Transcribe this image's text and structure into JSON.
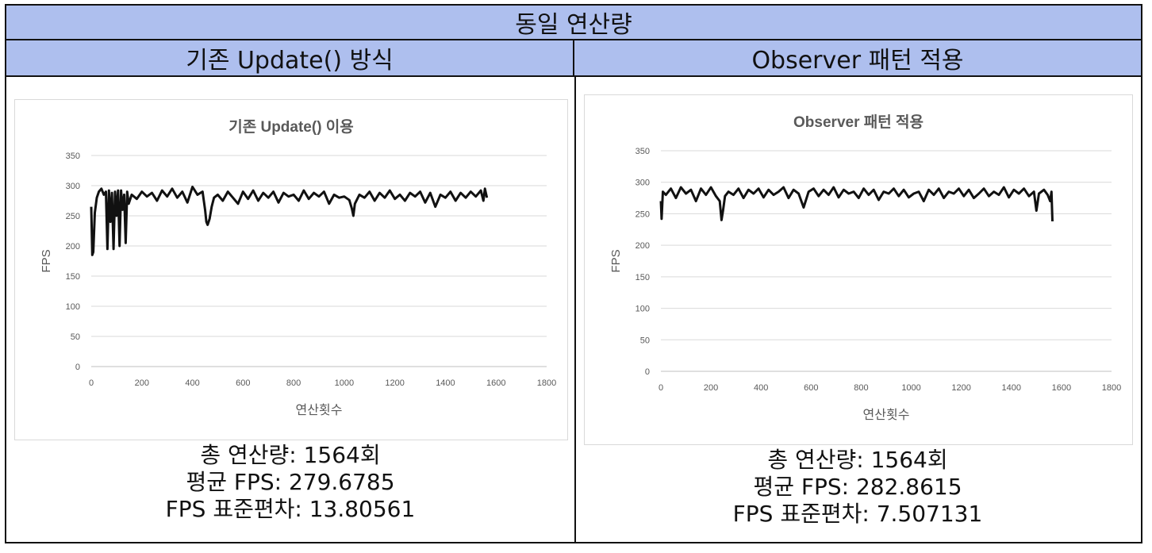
{
  "header": {
    "title": "동일 연산량",
    "columns": [
      "기존 Update() 방식",
      "Observer 패턴 적용"
    ]
  },
  "panels": [
    {
      "stats": [
        "총 연산량: 1564회",
        "평균 FPS: 279.6785",
        "FPS 표준편차: 13.80561"
      ]
    },
    {
      "stats": [
        "총 연산량: 1564회",
        "평균 FPS: 282.8615",
        "FPS 표준편차: 7.507131"
      ]
    }
  ],
  "chart_data": [
    {
      "type": "line",
      "title": "기존 Update() 이용",
      "xlabel": "연산횟수",
      "ylabel": "FPS",
      "xlim": [
        0,
        1800
      ],
      "ylim": [
        0,
        350
      ],
      "xticks": [
        "0",
        "200",
        "400",
        "600",
        "800",
        "1000",
        "1200",
        "1400",
        "1600",
        "1800"
      ],
      "yticks": [
        "0",
        "50",
        "100",
        "150",
        "200",
        "250",
        "300",
        "350"
      ],
      "grid": true,
      "color": "#111111",
      "series": [
        {
          "x": [
            0,
            4,
            8,
            14,
            22,
            30,
            40,
            50,
            58,
            64,
            70,
            76,
            82,
            88,
            94,
            100,
            106,
            112,
            118,
            124,
            130,
            136,
            142,
            148,
            160,
            180,
            200,
            220,
            240,
            260,
            280,
            300,
            320,
            340,
            360,
            380,
            400,
            420,
            440,
            450,
            455,
            460,
            468,
            476,
            485,
            500,
            520,
            540,
            560,
            580,
            600,
            620,
            640,
            660,
            680,
            700,
            720,
            740,
            760,
            780,
            800,
            820,
            840,
            860,
            880,
            900,
            920,
            940,
            960,
            980,
            1000,
            1020,
            1030,
            1036,
            1042,
            1060,
            1080,
            1100,
            1120,
            1140,
            1160,
            1180,
            1200,
            1220,
            1240,
            1260,
            1280,
            1300,
            1320,
            1340,
            1360,
            1380,
            1400,
            1420,
            1440,
            1460,
            1480,
            1500,
            1520,
            1540,
            1550,
            1556,
            1564
          ],
          "y": [
            265,
            185,
            190,
            255,
            280,
            290,
            295,
            285,
            290,
            195,
            292,
            240,
            288,
            195,
            290,
            250,
            292,
            200,
            292,
            260,
            285,
            205,
            290,
            270,
            285,
            278,
            290,
            282,
            288,
            275,
            292,
            282,
            295,
            280,
            290,
            272,
            298,
            285,
            290,
            260,
            240,
            235,
            245,
            265,
            280,
            285,
            275,
            290,
            280,
            270,
            290,
            278,
            292,
            275,
            288,
            280,
            290,
            272,
            288,
            282,
            285,
            275,
            292,
            278,
            288,
            282,
            290,
            270,
            285,
            280,
            282,
            276,
            262,
            250,
            270,
            285,
            280,
            290,
            275,
            288,
            280,
            292,
            278,
            285,
            275,
            288,
            282,
            290,
            272,
            288,
            265,
            285,
            280,
            290,
            275,
            288,
            280,
            290,
            282,
            292,
            275,
            295,
            280
          ]
        }
      ]
    },
    {
      "type": "line",
      "title": "Observer 패턴 적용",
      "xlabel": "연산횟수",
      "ylabel": "FPS",
      "xlim": [
        0,
        1800
      ],
      "ylim": [
        0,
        350
      ],
      "xticks": [
        "0",
        "200",
        "400",
        "600",
        "800",
        "1000",
        "1200",
        "1400",
        "1600",
        "1800"
      ],
      "yticks": [
        "0",
        "50",
        "100",
        "150",
        "200",
        "250",
        "300",
        "350"
      ],
      "grid": true,
      "color": "#111111",
      "series": [
        {
          "x": [
            0,
            3,
            8,
            20,
            40,
            60,
            80,
            100,
            120,
            140,
            160,
            180,
            200,
            220,
            235,
            242,
            248,
            256,
            270,
            290,
            310,
            330,
            350,
            370,
            390,
            410,
            430,
            450,
            470,
            490,
            510,
            530,
            550,
            570,
            590,
            610,
            630,
            650,
            670,
            690,
            710,
            730,
            750,
            770,
            790,
            810,
            830,
            850,
            870,
            890,
            910,
            930,
            950,
            970,
            990,
            1010,
            1030,
            1050,
            1070,
            1090,
            1110,
            1130,
            1150,
            1170,
            1190,
            1210,
            1230,
            1250,
            1270,
            1290,
            1310,
            1330,
            1350,
            1370,
            1390,
            1410,
            1430,
            1450,
            1470,
            1490,
            1500,
            1510,
            1530,
            1545,
            1555,
            1560,
            1564
          ],
          "y": [
            270,
            242,
            285,
            280,
            290,
            275,
            292,
            282,
            288,
            270,
            290,
            280,
            292,
            278,
            270,
            240,
            255,
            278,
            285,
            280,
            290,
            275,
            288,
            282,
            290,
            276,
            288,
            280,
            285,
            292,
            275,
            288,
            282,
            260,
            285,
            290,
            278,
            288,
            280,
            292,
            276,
            288,
            282,
            285,
            275,
            290,
            280,
            288,
            272,
            285,
            282,
            290,
            278,
            288,
            276,
            282,
            285,
            270,
            288,
            280,
            290,
            275,
            285,
            282,
            290,
            278,
            288,
            275,
            282,
            290,
            278,
            285,
            280,
            292,
            276,
            288,
            282,
            290,
            278,
            285,
            255,
            282,
            288,
            280,
            270,
            285,
            238
          ]
        }
      ]
    }
  ]
}
